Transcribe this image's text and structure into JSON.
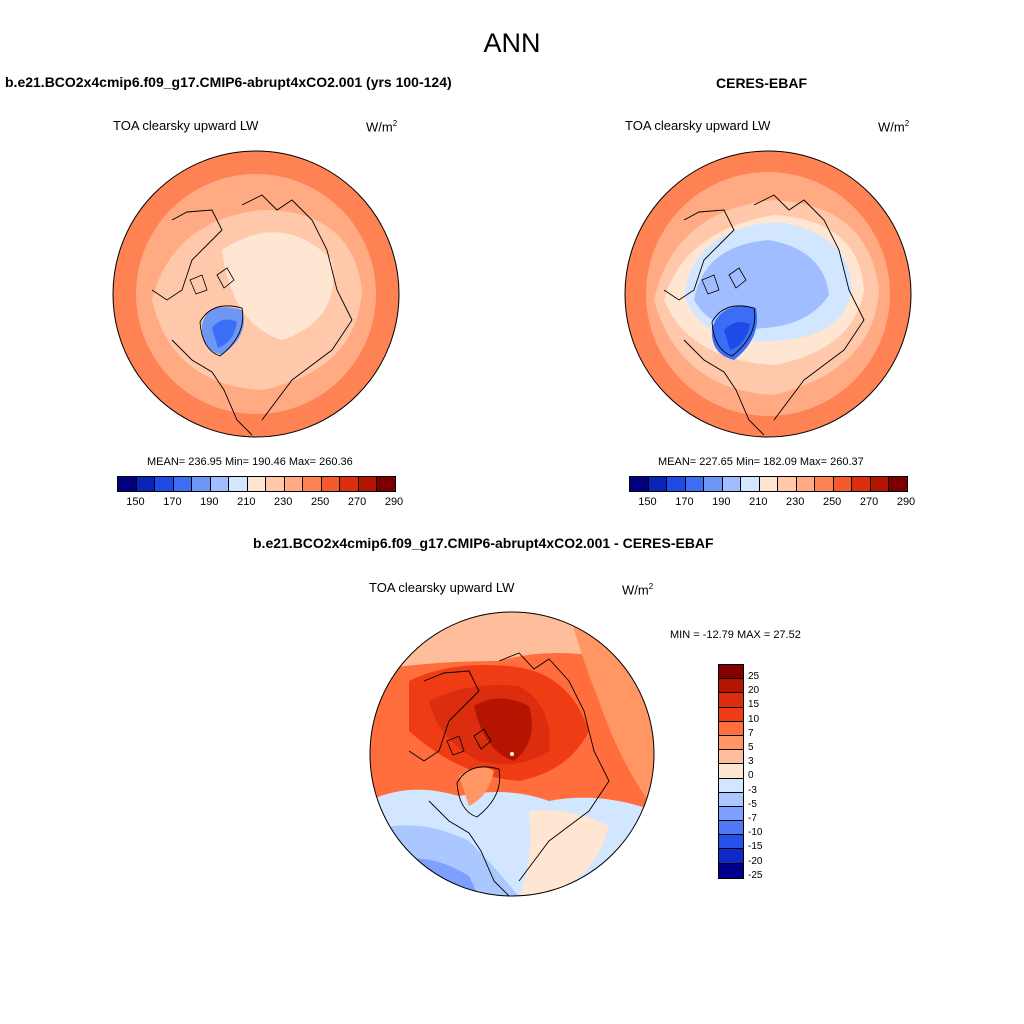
{
  "figure": {
    "title": "ANN",
    "colors": {
      "abs_scale": [
        "#000080",
        "#0a23b8",
        "#1e4be6",
        "#3c6ef5",
        "#6e96f5",
        "#a0beff",
        "#d2e6ff",
        "#ffe6d2",
        "#ffc8aa",
        "#ffaa82",
        "#ff8255",
        "#f55a2d",
        "#dc2d0f",
        "#b41400",
        "#7d0000"
      ],
      "diff_scale": [
        "#820000",
        "#b41400",
        "#dc2d0f",
        "#f03c14",
        "#ff6e3c",
        "#ff9664",
        "#ffbe9b",
        "#ffe6d2",
        "#d2e6ff",
        "#aac8ff",
        "#7da0ff",
        "#5078f5",
        "#2850eb",
        "#0f28c8",
        "#00008c"
      ]
    }
  },
  "panels": {
    "model": {
      "title": "b.e21.BCO2x4cmip6.f09_g17.CMIP6-abrupt4xCO2.001 (yrs 100-124)",
      "variable": "TOA clearsky upward LW",
      "units_base": "W/m",
      "units_exp": "2",
      "stats": "MEAN= 236.95  Min= 190.46  Max= 260.36",
      "ticks": [
        "150",
        "170",
        "190",
        "210",
        "230",
        "250",
        "270",
        "290"
      ]
    },
    "obs": {
      "title": "CERES-EBAF",
      "variable": "TOA clearsky upward LW",
      "units_base": "W/m",
      "units_exp": "2",
      "stats": "MEAN= 227.65  Min= 182.09  Max= 260.37",
      "ticks": [
        "150",
        "170",
        "190",
        "210",
        "230",
        "250",
        "270",
        "290"
      ]
    },
    "diff": {
      "title": "b.e21.BCO2x4cmip6.f09_g17.CMIP6-abrupt4xCO2.001 - CERES-EBAF",
      "variable": "TOA clearsky upward LW",
      "units_base": "W/m",
      "units_exp": "2",
      "stats": "MIN = -12.79 MAX =  27.52",
      "ticks": [
        "25",
        "20",
        "15",
        "10",
        "7",
        "5",
        "3",
        "0",
        "-3",
        "-5",
        "-7",
        "-10",
        "-15",
        "-20",
        "-25"
      ]
    }
  }
}
